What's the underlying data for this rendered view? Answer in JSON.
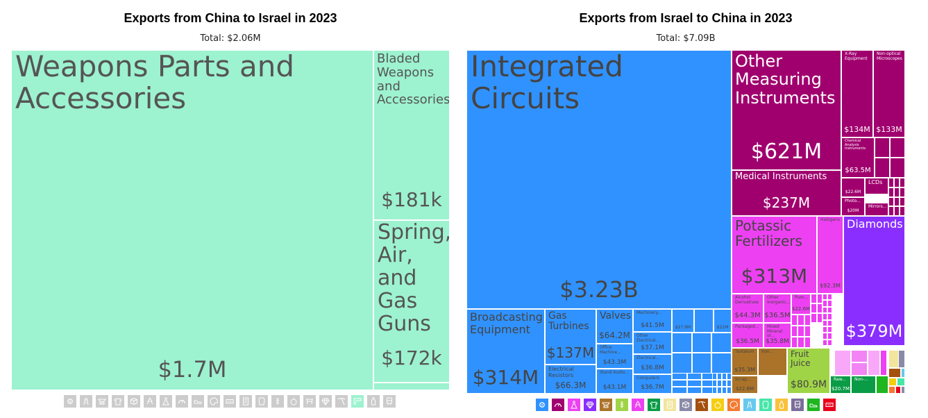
{
  "chart_data": [
    {
      "type": "treemap",
      "title": "Exports from China to Israel in 2023",
      "subtitle": "Total: $2.06M",
      "items": [
        {
          "label": "Weapons Parts and Accessories",
          "value": "$1.7M",
          "color": "#9df2d0"
        },
        {
          "label": "Bladed Weapons and Accessories",
          "value": "$181k",
          "color": "#9df2d0"
        },
        {
          "label": "Spring, Air, and Gas Guns",
          "value": "$172k",
          "color": "#9df2d0"
        },
        {
          "label": "",
          "value": "",
          "color": "#9df2d0"
        }
      ]
    },
    {
      "type": "treemap",
      "title": "Exports from Israel to China in 2023",
      "subtitle": "Total: $7.09B",
      "items": [
        {
          "label": "Integrated Circuits",
          "value": "$3.23B",
          "color": "#3092ff"
        },
        {
          "label": "Broadcasting Equipment",
          "value": "$314M",
          "color": "#3092ff"
        },
        {
          "label": "Gas Turbines",
          "value": "$137M",
          "color": "#3092ff"
        },
        {
          "label": "Electrical Resistors",
          "value": "$66.3M",
          "color": "#3092ff"
        },
        {
          "label": "Valves",
          "value": "$64.2M",
          "color": "#3092ff"
        },
        {
          "label": "Office Machine...",
          "value": "$43.3M",
          "color": "#3092ff"
        },
        {
          "label": "Stand Audio...",
          "value": "$43.1M",
          "color": "#3092ff"
        },
        {
          "label": "Machinery...",
          "value": "$41.5M",
          "color": "#3092ff"
        },
        {
          "label": "Other Electrical...",
          "value": "$37.1M",
          "color": "#3092ff"
        },
        {
          "label": "Electrical...",
          "value": "$36.8M",
          "color": "#3092ff"
        },
        {
          "label": "Computers",
          "value": "$36.7M",
          "color": "#3092ff"
        },
        {
          "label": "",
          "value": "$27.9M",
          "color": "#3092ff"
        },
        {
          "label": "",
          "value": "$21M",
          "color": "#3092ff"
        },
        {
          "label": "Other Measuring Instruments",
          "value": "$621M",
          "color": "#a0006e"
        },
        {
          "label": "Medical Instruments",
          "value": "$237M",
          "color": "#a0006e"
        },
        {
          "label": "X-Ray Equipment",
          "value": "$134M",
          "color": "#a0006e"
        },
        {
          "label": "Non-optical Microscopes",
          "value": "$133M",
          "color": "#a0006e"
        },
        {
          "label": "Chemical Analysis Instruments",
          "value": "$63.5M",
          "color": "#a0006e"
        },
        {
          "label": "",
          "value": "$22.6M",
          "color": "#a0006e"
        },
        {
          "label": "LCDs",
          "value": "",
          "color": "#a0006e"
        },
        {
          "label": "Photo...",
          "value": "$20M",
          "color": "#a0006e"
        },
        {
          "label": "Mirrors...",
          "value": "",
          "color": "#a0006e"
        },
        {
          "label": "Potassic Fertilizers",
          "value": "$313M",
          "color": "#ed40f2"
        },
        {
          "label": "Halogens",
          "value": "$92.3M",
          "color": "#ed40f2"
        },
        {
          "label": "Alcohol Derivatives",
          "value": "$44.3M",
          "color": "#ed40f2"
        },
        {
          "label": "Other Inorganic...",
          "value": "$36.5M",
          "color": "#ed40f2"
        },
        {
          "label": "Pum...",
          "value": "$22.6M",
          "color": "#ed40f2"
        },
        {
          "label": "Packaged...",
          "value": "$36.5M",
          "color": "#ed40f2"
        },
        {
          "label": "Mixed Mineral or...",
          "value": "$35.8M",
          "color": "#ed40f2"
        },
        {
          "label": "Diamonds",
          "value": "$379M",
          "color": "#892eff"
        },
        {
          "label": "Tantalum",
          "value": "$35.3M",
          "color": "#aa7329"
        },
        {
          "label": "Iron...",
          "value": "",
          "color": "#aa7329"
        },
        {
          "label": "Scrap...",
          "value": "$22.8M",
          "color": "#aa7329"
        },
        {
          "label": "Fruit Juice",
          "value": "$80.9M",
          "color": "#a0d447"
        },
        {
          "label": "Raw...",
          "value": "$20.7M",
          "color": "#0a9b46"
        },
        {
          "label": "Non-...",
          "value": "",
          "color": "#0a9b46"
        }
      ]
    }
  ],
  "legend_left": [
    {
      "icon": "gear-icon",
      "color": "#cccccc"
    },
    {
      "icon": "road-icon",
      "color": "#cccccc"
    },
    {
      "icon": "anvil-icon",
      "color": "#cccccc"
    },
    {
      "icon": "shirt-icon",
      "color": "#cccccc"
    },
    {
      "icon": "box-icon",
      "color": "#cccccc"
    },
    {
      "icon": "recycle-icon",
      "color": "#cccccc"
    },
    {
      "icon": "flask-icon",
      "color": "#cccccc"
    },
    {
      "icon": "gauge-icon",
      "color": "#cccccc"
    },
    {
      "icon": "shoe-icon",
      "color": "#cccccc"
    },
    {
      "icon": "palette-icon",
      "color": "#cccccc"
    },
    {
      "icon": "ticket-icon",
      "color": "#cccccc"
    },
    {
      "icon": "scroll-icon",
      "color": "#cccccc"
    },
    {
      "icon": "hide-icon",
      "color": "#cccccc"
    },
    {
      "icon": "wheat-icon",
      "color": "#cccccc"
    },
    {
      "icon": "apple-icon",
      "color": "#cccccc"
    },
    {
      "icon": "stool-icon",
      "color": "#cccccc"
    },
    {
      "icon": "gem-icon",
      "color": "#cccccc"
    },
    {
      "icon": "pickaxe-icon",
      "color": "#cccccc"
    },
    {
      "icon": "weapon-icon",
      "color": "#9df2d0"
    },
    {
      "icon": "bottle-icon",
      "color": "#cccccc"
    },
    {
      "icon": "train-icon",
      "color": "#cccccc"
    }
  ],
  "legend_right": [
    {
      "icon": "gear-icon",
      "color": "#3092ff"
    },
    {
      "icon": "gauge-icon",
      "color": "#a0006e"
    },
    {
      "icon": "flask-icon",
      "color": "#ed40f2"
    },
    {
      "icon": "gem-icon",
      "color": "#892eff"
    },
    {
      "icon": "anvil-icon",
      "color": "#aa7329"
    },
    {
      "icon": "wheat-icon",
      "color": "#a0d447"
    },
    {
      "icon": "recycle-icon",
      "color": "#ed40f2"
    },
    {
      "icon": "shirt-icon",
      "color": "#0a9b46"
    },
    {
      "icon": "scroll-icon",
      "color": "#f2e59d"
    },
    {
      "icon": "box-icon",
      "color": "#8a8aa8"
    },
    {
      "icon": "pickaxe-icon",
      "color": "#a4500e"
    },
    {
      "icon": "apple-icon",
      "color": "#f4ce0f"
    },
    {
      "icon": "palette-icon",
      "color": "#f47a30"
    },
    {
      "icon": "road-icon",
      "color": "#67c8ee"
    },
    {
      "icon": "hide-icon",
      "color": "#47e6a8"
    },
    {
      "icon": "bottle-icon",
      "color": "#f9c23c"
    },
    {
      "icon": "train-icon",
      "color": "#7a6d9a"
    },
    {
      "icon": "shoe-icon",
      "color": "#1fb61f"
    },
    {
      "icon": "ticket-icon",
      "color": "#e8001c"
    }
  ]
}
